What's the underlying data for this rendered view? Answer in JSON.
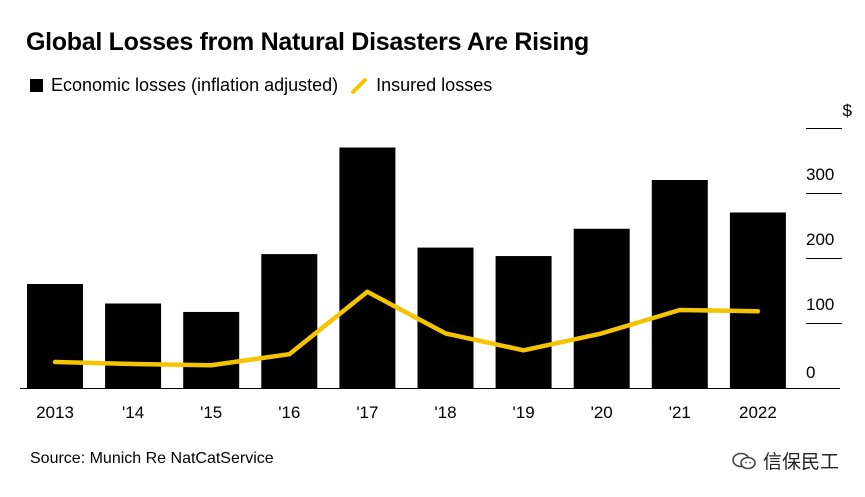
{
  "title": "Global Losses from Natural Disasters Are Rising",
  "legend": {
    "economic": "Economic losses (inflation adjusted)",
    "insured": "Insured losses"
  },
  "source": "Source: Munich Re NatCatService",
  "watermark": "信保民工",
  "colors": {
    "bar": "#000000",
    "line": "#f5c400",
    "axis": "#000000"
  },
  "chart_data": {
    "type": "bar",
    "categories": [
      "2013",
      "'14",
      "'15",
      "'16",
      "'17",
      "'18",
      "'19",
      "'20",
      "'21",
      "2022"
    ],
    "series": [
      {
        "name": "Economic losses (inflation adjusted)",
        "type": "bar",
        "values": [
          160,
          130,
          117,
          206,
          370,
          216,
          203,
          245,
          320,
          270
        ]
      },
      {
        "name": "Insured losses",
        "type": "line",
        "values": [
          40,
          37,
          35,
          52,
          148,
          84,
          58,
          84,
          120,
          118
        ]
      }
    ],
    "y_unit_label": "$",
    "y_ticks": [
      0,
      100,
      200,
      300
    ],
    "y_tick_labels": [
      "0",
      "100",
      "200",
      "300"
    ],
    "ylim": [
      0,
      400
    ],
    "grid": false
  }
}
